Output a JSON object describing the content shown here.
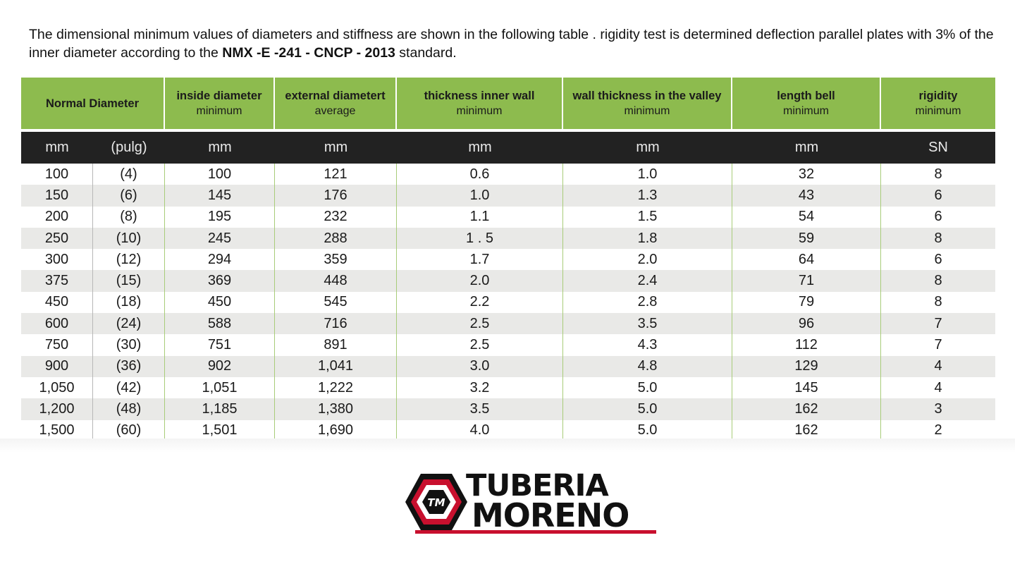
{
  "intro": {
    "text_before": "The dimensional minimum values of diameters and stiffness are shown in the following table . rigidity test is determined deflection parallel plates with 3% of the inner diameter according to the ",
    "standard": "NMX -E -241 - CNCP - 2013",
    "text_after": " standard."
  },
  "table": {
    "header": [
      {
        "title": "Normal Diameter",
        "sub": ""
      },
      {
        "title": "inside diameter",
        "sub": "minimum"
      },
      {
        "title": "external diametert",
        "sub": "average"
      },
      {
        "title": "thickness inner wall",
        "sub": "minimum"
      },
      {
        "title": "wall thickness in the valley",
        "sub": "minimum"
      },
      {
        "title": "length bell",
        "sub": "minimum"
      },
      {
        "title": "rigidity",
        "sub": "minimum"
      }
    ],
    "units": [
      "mm",
      "(pulg)",
      "mm",
      "mm",
      "mm",
      "mm",
      "mm",
      "SN"
    ],
    "rows": [
      [
        "100",
        "(4)",
        "100",
        "121",
        "0.6",
        "1.0",
        "32",
        "8"
      ],
      [
        "150",
        "(6)",
        "145",
        "176",
        "1.0",
        "1.3",
        "43",
        "6"
      ],
      [
        "200",
        "(8)",
        "195",
        "232",
        "1.1",
        "1.5",
        "54",
        "6"
      ],
      [
        "250",
        "(10)",
        "245",
        "288",
        "1 . 5",
        "1.8",
        "59",
        "8"
      ],
      [
        "300",
        "(12)",
        "294",
        "359",
        "1.7",
        "2.0",
        "64",
        "6"
      ],
      [
        "375",
        "(15)",
        "369",
        "448",
        "2.0",
        "2.4",
        "71",
        "8"
      ],
      [
        "450",
        "(18)",
        "450",
        "545",
        "2.2",
        "2.8",
        "79",
        "8"
      ],
      [
        "600",
        "(24)",
        "588",
        "716",
        "2.5",
        "3.5",
        "96",
        "7"
      ],
      [
        "750",
        "(30)",
        "751",
        "891",
        "2.5",
        "4.3",
        "112",
        "7"
      ],
      [
        "900",
        "(36)",
        "902",
        "1,041",
        "3.0",
        "4.8",
        "129",
        "4"
      ],
      [
        "1,050",
        "(42)",
        "1,051",
        "1,222",
        "3.2",
        "5.0",
        "145",
        "4"
      ],
      [
        "1,200",
        "(48)",
        "1,185",
        "1,380",
        "3.5",
        "5.0",
        "162",
        "3"
      ],
      [
        "1,500",
        "(60)",
        "1,501",
        "1,690",
        "4.0",
        "5.0",
        "162",
        "2"
      ]
    ]
  },
  "logo": {
    "monogram": "TM",
    "line1": "TUBERIA",
    "line2": "MORENO",
    "colors": {
      "red": "#c8102e",
      "black": "#111111"
    }
  },
  "colors": {
    "header_green": "#8dbb4e",
    "header_dark": "#222222",
    "row_alt": "#e9e9e7"
  }
}
